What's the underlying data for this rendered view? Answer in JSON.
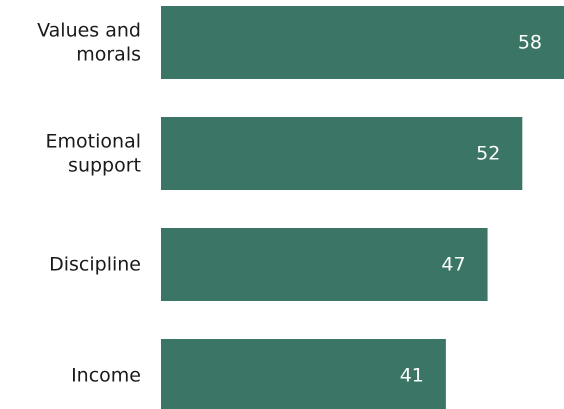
{
  "chart_data": {
    "type": "bar",
    "orientation": "horizontal",
    "categories": [
      [
        "Values and",
        "morals"
      ],
      [
        "Emotional",
        "support"
      ],
      [
        "Discipline"
      ],
      [
        "Income"
      ]
    ],
    "values": [
      58,
      52,
      47,
      41
    ],
    "data_labels": [
      "58",
      "52",
      "47",
      "41"
    ],
    "bar_color": "#3a7565",
    "value_label_color": "#ffffff",
    "category_label_color": "#1a1a1a",
    "xlim": [
      0,
      58
    ],
    "grid": false,
    "legend": "none"
  }
}
